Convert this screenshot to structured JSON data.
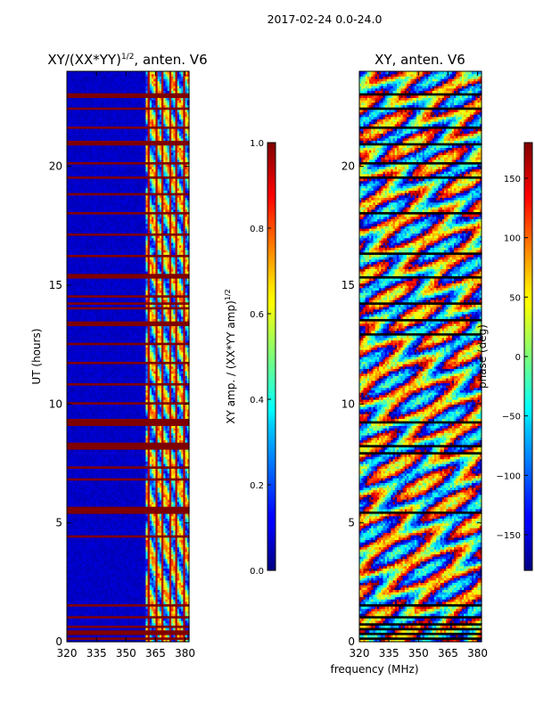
{
  "suptitle": "2017-02-24 0.0-24.0",
  "chart_data": [
    {
      "type": "heatmap",
      "title": "XY/(XX*YY)",
      "title_exponent": "1/2",
      "title_suffix": ", anten. V6",
      "xlabel": "",
      "ylabel": "UT (hours)",
      "xlim": [
        320,
        382
      ],
      "ylim": [
        0,
        24
      ],
      "x_ticks": [
        320,
        335,
        350,
        365,
        380
      ],
      "y_ticks": [
        0,
        5,
        10,
        15,
        20
      ],
      "colorbar": {
        "label": "XY amp. / (XX*YY amp)",
        "label_exponent": "1/2",
        "range": [
          0.0,
          1.0
        ],
        "ticks": [
          "0.0",
          "0.2",
          "0.4",
          "0.6",
          "0.8",
          "1.0"
        ],
        "tick_values": [
          0.0,
          0.2,
          0.4,
          0.6,
          0.8,
          1.0
        ]
      },
      "background_value": 0.05,
      "active_band_mhz": [
        360,
        381
      ],
      "flagged_ut_hours": [
        0.1,
        0.25,
        0.4,
        0.6,
        1.0,
        1.5,
        4.4,
        5.4,
        5.45,
        5.5,
        5.6,
        6.8,
        7.3,
        8.1,
        8.2,
        8.3,
        9.1,
        9.2,
        9.3,
        10.0,
        10.8,
        11.7,
        12.5,
        13.3,
        13.4,
        14.0,
        14.2,
        14.5,
        15.3,
        15.35,
        15.4,
        16.2,
        17.1,
        18.0,
        18.8,
        19.5,
        20.1,
        20.9,
        20.95,
        21.6,
        22.4,
        22.9,
        23.0
      ]
    },
    {
      "type": "heatmap",
      "title": "XY, anten. V6",
      "xlabel": "frequency (MHz)",
      "ylabel": "",
      "xlim": [
        320,
        382
      ],
      "ylim": [
        0,
        24
      ],
      "x_ticks": [
        320,
        335,
        350,
        365,
        380
      ],
      "y_ticks": [
        0,
        5,
        10,
        15,
        20
      ],
      "colorbar": {
        "label": "phase (deg)",
        "range": [
          -180,
          180
        ],
        "ticks": [
          "−150",
          "−100",
          "−50",
          "0",
          "50",
          "100",
          "150"
        ],
        "tick_values": [
          -150,
          -100,
          -50,
          0,
          50,
          100,
          150
        ]
      },
      "flagged_ut_hours": [
        0.1,
        0.3,
        0.5,
        0.7,
        1.0,
        1.5,
        5.4,
        7.9,
        8.2,
        9.2,
        12.9,
        13.5,
        14.2,
        15.3,
        16.3,
        18.0,
        19.5,
        20.1,
        20.9,
        21.6,
        22.4,
        23.0
      ]
    }
  ]
}
